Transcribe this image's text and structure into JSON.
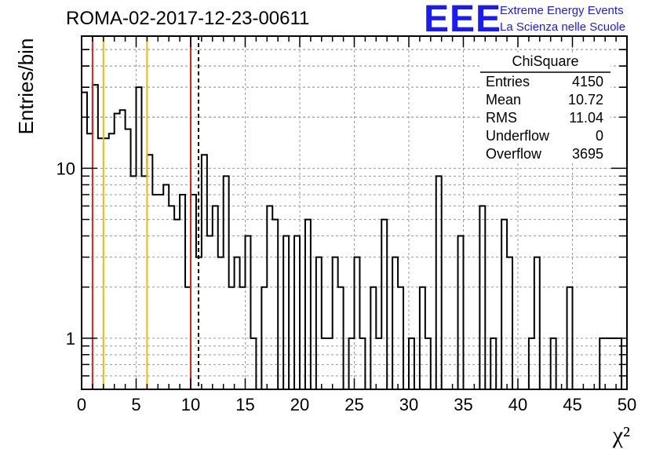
{
  "page": {
    "title": "ROMA-02-2017-12-23-00611",
    "logo_text": "EEE",
    "logo_line1": "Extreme Energy Events",
    "logo_line2": "La Scienza nelle Scuole"
  },
  "stats_box": {
    "title": "ChiSquare",
    "rows": [
      {
        "label": "Entries",
        "value": "4150"
      },
      {
        "label": "Mean",
        "value": "10.72"
      },
      {
        "label": "RMS",
        "value": "11.04"
      },
      {
        "label": "Underflow",
        "value": "0"
      },
      {
        "label": "Overflow",
        "value": "3695"
      }
    ]
  },
  "colors": {
    "red_line": "#e02020",
    "orange_line": "#f5b800",
    "logo": "#1a1aff",
    "grid": "#9a9a9a"
  },
  "chart_data": {
    "type": "bar",
    "style": "step histogram",
    "xlabel": "χ²",
    "ylabel": "Entries/bin",
    "xlim": [
      0,
      50
    ],
    "ylim": [
      0.5,
      60
    ],
    "yscale": "log",
    "grid": true,
    "legend": "top-right",
    "bin_width": 0.5,
    "x_ticks": [
      "0",
      "5",
      "10",
      "15",
      "20",
      "25",
      "30",
      "35",
      "40",
      "45",
      "50"
    ],
    "y_ticks": [
      "1",
      "10"
    ],
    "vertical_lines": [
      {
        "x": 1,
        "color": "red",
        "style": "solid"
      },
      {
        "x": 2,
        "color": "orange",
        "style": "solid"
      },
      {
        "x": 6,
        "color": "orange",
        "style": "solid"
      },
      {
        "x": 10,
        "color": "red",
        "style": "solid"
      },
      {
        "x": 10.72,
        "color": "black",
        "style": "dashed"
      }
    ],
    "values": [
      28,
      16,
      31,
      15,
      15,
      16,
      21,
      22,
      17,
      9,
      30,
      9,
      12,
      7,
      7,
      8,
      6,
      5,
      7,
      2,
      7,
      3,
      12,
      4,
      6,
      3,
      9,
      2,
      3,
      2,
      4,
      1,
      0,
      2,
      6,
      5,
      0,
      4,
      0,
      4,
      0,
      5,
      0,
      3,
      1,
      1,
      3,
      2,
      0,
      1,
      3,
      1,
      0,
      2,
      1,
      5,
      0,
      3,
      2,
      0,
      1,
      0,
      2,
      1,
      0,
      9,
      0,
      0,
      0,
      4,
      0,
      0,
      0,
      6,
      0,
      1,
      0,
      5,
      3,
      0,
      0,
      0,
      1,
      3,
      0,
      0,
      1,
      0,
      0,
      2,
      0,
      0,
      0,
      0,
      0,
      1,
      1,
      1,
      1,
      0
    ]
  }
}
